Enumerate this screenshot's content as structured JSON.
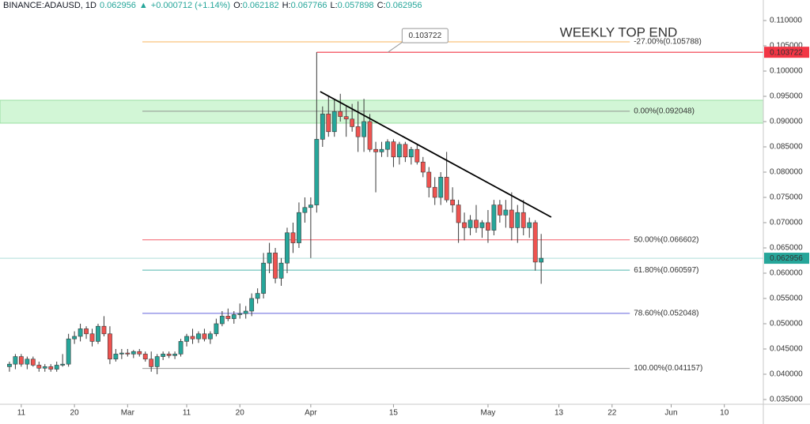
{
  "chart_data": {
    "type": "candlestick",
    "title": "WEEKLY TOP END",
    "header": {
      "symbol": "BINANCE:ADAUSD, 1D",
      "price": "0.062956",
      "arrow": "▲",
      "change": "+0.000712 (+1.14%)",
      "ohlc": [
        {
          "label": "O:",
          "value": "0.062182"
        },
        {
          "label": "H:",
          "value": "0.067766"
        },
        {
          "label": "L:",
          "value": "0.057898"
        },
        {
          "label": "C:",
          "value": "0.062956"
        }
      ]
    },
    "x": [
      8,
      9,
      10,
      11,
      12,
      13,
      14,
      15,
      16,
      17,
      18,
      19,
      20,
      21,
      22,
      23,
      24,
      25,
      26,
      27,
      28,
      29,
      30,
      31,
      32,
      33,
      34,
      35,
      36,
      37,
      38,
      39,
      40,
      41,
      42,
      43,
      44,
      45,
      46,
      47,
      48,
      49,
      50,
      51,
      52,
      53,
      54,
      55,
      56,
      57,
      58,
      59,
      60,
      61,
      62,
      63,
      64,
      65,
      66,
      67,
      68,
      69,
      70,
      71,
      72,
      73,
      74,
      75,
      76,
      77,
      78,
      79,
      80,
      81,
      82,
      83,
      84,
      85,
      86,
      87,
      88,
      89,
      90,
      91,
      92,
      93,
      94,
      95,
      96,
      97,
      98
    ],
    "open": [
      0.0415,
      0.042,
      0.0435,
      0.042,
      0.043,
      0.0418,
      0.0412,
      0.0415,
      0.041,
      0.0418,
      0.042,
      0.047,
      0.0475,
      0.049,
      0.048,
      0.0465,
      0.0495,
      0.048,
      0.043,
      0.044,
      0.0442,
      0.044,
      0.0445,
      0.044,
      0.043,
      0.0415,
      0.0435,
      0.044,
      0.0437,
      0.044,
      0.0465,
      0.0475,
      0.047,
      0.048,
      0.047,
      0.048,
      0.05,
      0.0515,
      0.051,
      0.0518,
      0.052,
      0.0525,
      0.055,
      0.056,
      0.062,
      0.064,
      0.059,
      0.062,
      0.068,
      0.066,
      0.072,
      0.073,
      0.0735,
      0.0865,
      0.0915,
      0.088,
      0.092,
      0.091,
      0.0905,
      0.089,
      0.087,
      0.09,
      0.0845,
      0.084,
      0.0845,
      0.086,
      0.083,
      0.0855,
      0.083,
      0.0845,
      0.082,
      0.08,
      0.077,
      0.075,
      0.079,
      0.0745,
      0.0735,
      0.07,
      0.069,
      0.0705,
      0.069,
      0.07,
      0.0685,
      0.0735,
      0.0715,
      0.0725,
      0.069,
      0.072,
      0.069,
      0.07,
      0.062182
    ],
    "high": [
      0.0425,
      0.044,
      0.044,
      0.0435,
      0.0435,
      0.0425,
      0.042,
      0.042,
      0.0425,
      0.044,
      0.048,
      0.0485,
      0.05,
      0.0495,
      0.049,
      0.05,
      0.0515,
      0.0495,
      0.045,
      0.045,
      0.045,
      0.0448,
      0.045,
      0.0445,
      0.0445,
      0.044,
      0.0445,
      0.0445,
      0.0445,
      0.047,
      0.048,
      0.049,
      0.0485,
      0.049,
      0.0485,
      0.051,
      0.0525,
      0.053,
      0.0525,
      0.054,
      0.0535,
      0.056,
      0.057,
      0.064,
      0.066,
      0.065,
      0.063,
      0.069,
      0.07,
      0.074,
      0.075,
      0.075,
      0.103722,
      0.093,
      0.095,
      0.0945,
      0.0955,
      0.093,
      0.0935,
      0.094,
      0.0945,
      0.0915,
      0.086,
      0.086,
      0.0865,
      0.0865,
      0.086,
      0.086,
      0.085,
      0.0855,
      0.083,
      0.081,
      0.079,
      0.08,
      0.084,
      0.077,
      0.0745,
      0.072,
      0.0715,
      0.0735,
      0.0705,
      0.0725,
      0.0745,
      0.0745,
      0.0745,
      0.076,
      0.0735,
      0.0745,
      0.071,
      0.0705,
      0.067766
    ],
    "low": [
      0.0405,
      0.041,
      0.0415,
      0.041,
      0.0415,
      0.0405,
      0.0405,
      0.0405,
      0.0405,
      0.0415,
      0.0415,
      0.046,
      0.0465,
      0.047,
      0.0455,
      0.046,
      0.0475,
      0.042,
      0.0425,
      0.043,
      0.0435,
      0.0432,
      0.0435,
      0.0425,
      0.0405,
      0.04,
      0.0428,
      0.0432,
      0.043,
      0.0435,
      0.0455,
      0.046,
      0.0462,
      0.0465,
      0.046,
      0.0475,
      0.0495,
      0.0505,
      0.05,
      0.051,
      0.051,
      0.0515,
      0.054,
      0.055,
      0.06,
      0.058,
      0.0575,
      0.06,
      0.064,
      0.065,
      0.07,
      0.063,
      0.072,
      0.085,
      0.087,
      0.087,
      0.09,
      0.087,
      0.088,
      0.084,
      0.084,
      0.084,
      0.076,
      0.083,
      0.083,
      0.081,
      0.0815,
      0.082,
      0.0815,
      0.0815,
      0.079,
      0.075,
      0.0735,
      0.0735,
      0.074,
      0.072,
      0.066,
      0.0665,
      0.0675,
      0.068,
      0.067,
      0.066,
      0.0675,
      0.07,
      0.069,
      0.0665,
      0.066,
      0.0675,
      0.067,
      0.0605,
      0.057898
    ],
    "close": [
      0.042,
      0.0435,
      0.042,
      0.043,
      0.0418,
      0.0412,
      0.0415,
      0.041,
      0.0418,
      0.042,
      0.047,
      0.0475,
      0.049,
      0.048,
      0.0465,
      0.0495,
      0.048,
      0.043,
      0.044,
      0.0442,
      0.044,
      0.0445,
      0.044,
      0.043,
      0.0415,
      0.0435,
      0.044,
      0.0437,
      0.044,
      0.0465,
      0.0475,
      0.047,
      0.048,
      0.047,
      0.048,
      0.05,
      0.0515,
      0.051,
      0.0518,
      0.052,
      0.0525,
      0.055,
      0.056,
      0.062,
      0.064,
      0.059,
      0.062,
      0.068,
      0.066,
      0.072,
      0.073,
      0.0735,
      0.0865,
      0.0915,
      0.088,
      0.092,
      0.091,
      0.0905,
      0.089,
      0.087,
      0.09,
      0.0845,
      0.084,
      0.0845,
      0.086,
      0.083,
      0.0855,
      0.083,
      0.0845,
      0.082,
      0.08,
      0.077,
      0.075,
      0.079,
      0.0745,
      0.0735,
      0.07,
      0.069,
      0.0705,
      0.069,
      0.07,
      0.0685,
      0.0735,
      0.0715,
      0.0725,
      0.069,
      0.072,
      0.069,
      0.07,
      0.0622,
      0.062956
    ],
    "up_color": "#26a69a",
    "down_color": "#ef5350",
    "xlim": [
      6.4,
      135.6
    ],
    "xticks": [
      {
        "value": 10,
        "label": "11"
      },
      {
        "value": 19,
        "label": "20"
      },
      {
        "value": 28,
        "label": "Mar"
      },
      {
        "value": 38,
        "label": "11"
      },
      {
        "value": 47,
        "label": "20"
      },
      {
        "value": 59,
        "label": "Apr"
      },
      {
        "value": 73,
        "label": "15"
      },
      {
        "value": 89,
        "label": "May"
      },
      {
        "value": 101,
        "label": "13"
      },
      {
        "value": 110,
        "label": "22"
      },
      {
        "value": 120,
        "label": "Jun"
      },
      {
        "value": 129,
        "label": "10"
      }
    ],
    "ylim": [
      0.03406,
      0.11125
    ],
    "yticks": [
      {
        "value": 0.035,
        "label": "0.035000"
      },
      {
        "value": 0.04,
        "label": "0.040000"
      },
      {
        "value": 0.045,
        "label": "0.045000"
      },
      {
        "value": 0.05,
        "label": "0.050000"
      },
      {
        "value": 0.055,
        "label": "0.055000"
      },
      {
        "value": 0.06,
        "label": "0.060000"
      },
      {
        "value": 0.065,
        "label": "0.065000"
      },
      {
        "value": 0.07,
        "label": "0.070000"
      },
      {
        "value": 0.075,
        "label": "0.075000"
      },
      {
        "value": 0.08,
        "label": "0.080000"
      },
      {
        "value": 0.085,
        "label": "0.085000"
      },
      {
        "value": 0.09,
        "label": "0.090000"
      },
      {
        "value": 0.095,
        "label": "0.095000"
      },
      {
        "value": 0.1,
        "label": "0.100000"
      },
      {
        "value": 0.105,
        "label": "0.105000"
      },
      {
        "value": 0.11,
        "label": "0.110000"
      }
    ],
    "grid": false,
    "price_labels": [
      {
        "value": 0.103722,
        "label": "0.103722",
        "color": "#f23645"
      },
      {
        "value": 0.062956,
        "label": "0.062956",
        "color": "#26a69a"
      }
    ],
    "callout": {
      "value": 0.103722,
      "label": "0.103722"
    },
    "zone": {
      "ylim": [
        0.08969,
        0.09422
      ],
      "color": "#c8f5cc"
    },
    "trendline": {
      "x": [
        60.6,
        99.7
      ],
      "y": [
        0.09594,
        0.07109
      ],
      "color": "#000000"
    },
    "fib_range": [
      30.5,
      113
    ],
    "fib_levels": [
      {
        "value": 0.105788,
        "label": "-27.00%(0.105788)",
        "color": "#f7a233"
      },
      {
        "value": 0.092048,
        "label": "0.00%(0.092048)",
        "color": "#808080"
      },
      {
        "value": 0.066602,
        "label": "50.00%(0.066602)",
        "color": "#f23645"
      },
      {
        "value": 0.060597,
        "label": "61.80%(0.060597)",
        "color": "#26a69a"
      },
      {
        "value": 0.052048,
        "label": "78.60%(0.052048)",
        "color": "#3f3fd6"
      },
      {
        "value": 0.041157,
        "label": "100.00%(0.041157)",
        "color": "#808080"
      }
    ]
  }
}
